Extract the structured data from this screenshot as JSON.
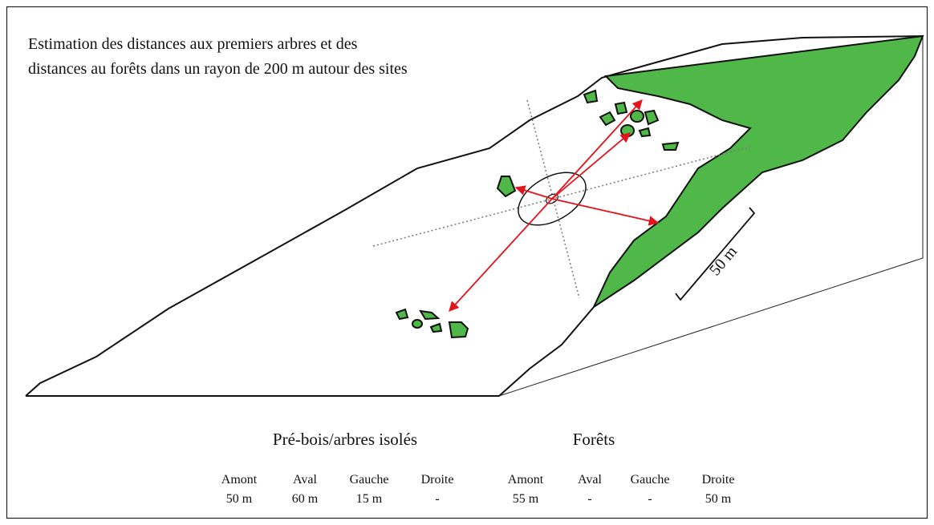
{
  "title_lines": [
    "Estimation des distances aux premiers arbres et des",
    "distances au forêts dans un rayon de 200 m autour des sites"
  ],
  "scale_label": "50 m",
  "groups": [
    {
      "name": "Pré-bois/arbres isolés",
      "columns": [
        "Amont",
        "Aval",
        "Gauche",
        "Droite"
      ],
      "values": [
        "50 m",
        "60 m",
        "15 m",
        "-"
      ]
    },
    {
      "name": "Forêts",
      "columns": [
        "Amont",
        "Aval",
        "Gauche",
        "Droite"
      ],
      "values": [
        "55 m",
        "-",
        "-",
        "50 m"
      ]
    }
  ]
}
